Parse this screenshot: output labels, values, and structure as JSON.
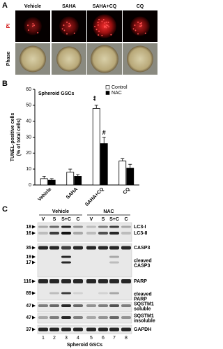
{
  "panel_a": {
    "label": "A",
    "columns": [
      "Vehicle",
      "SAHA",
      "SAHA+CQ",
      "CQ"
    ],
    "rows": [
      "PI",
      "Phase"
    ]
  },
  "panel_b": {
    "label": "B"
  },
  "chart_data": {
    "type": "bar",
    "title": "Spheroid GSCs",
    "y_label": [
      "TUNEL-positive cells",
      "(% of total cells)"
    ],
    "categories": [
      "Vehicle",
      "SAHA",
      "SAHA+CQ",
      "CQ"
    ],
    "series": [
      {
        "name": "Control",
        "color": "#ffffff",
        "values": [
          4,
          8,
          48,
          15
        ],
        "errors": [
          1.5,
          2,
          2,
          1.5
        ]
      },
      {
        "name": "NAC",
        "color": "#000000",
        "values": [
          3,
          5.5,
          26,
          10.5
        ],
        "errors": [
          1,
          1,
          4,
          2.5
        ]
      }
    ],
    "annotations": [
      {
        "text": "**",
        "series": 0,
        "index": 2
      },
      {
        "text": "#",
        "series": 1,
        "index": 2
      }
    ],
    "ylim": [
      0,
      60
    ],
    "yticks": [
      0,
      10,
      20,
      30,
      40,
      50,
      60
    ],
    "legend": "upper right"
  },
  "panel_c": {
    "label": "C",
    "groups": [
      "Vehicle",
      "NAC"
    ],
    "lanes": [
      "V",
      "S",
      "S+C",
      "C",
      "V",
      "S",
      "S+C",
      "C"
    ],
    "lane_numbers": [
      "1",
      "2",
      "3",
      "4",
      "5",
      "6",
      "7",
      "8"
    ],
    "markers": [
      "18",
      "16",
      "35",
      "19",
      "17",
      "116",
      "89",
      "47",
      "47",
      "37"
    ],
    "proteins": [
      [
        "LC3-I"
      ],
      [
        "LC3-II"
      ],
      [
        "CASP3"
      ],
      [
        "cleaved",
        "CASP3"
      ],
      [
        "PARP"
      ],
      [
        "cleaved",
        "PARP"
      ],
      [
        "SQSTM1",
        "soluble"
      ],
      [
        "SQSTM1",
        "insoluble"
      ],
      [
        "GAPDH"
      ]
    ],
    "footer": "Spheroid GSCs"
  }
}
